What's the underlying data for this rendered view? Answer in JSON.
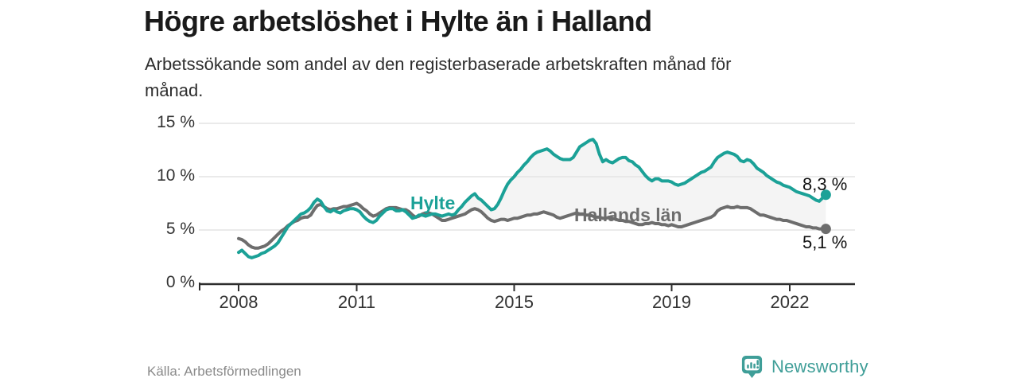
{
  "title": "Högre arbetslöshet i Hylte än i Halland",
  "subtitle": "Arbetssökande som andel av den registerbaserade arbetskraften månad för\nmånad.",
  "source": "Källa: Arbetsförmedlingen",
  "branding": {
    "name": "Newsworthy",
    "logo_icon": "newsworthy-chart-bubble-icon",
    "color": "#3f9e98"
  },
  "colors": {
    "hylte_line": "#1ba197",
    "halland_line": "#6d6d6d",
    "band_fill": "#f4f4f4",
    "gridline": "#e3e3e3",
    "axis": "#2d2d2d",
    "end_label": "#111111",
    "background": "#ffffff"
  },
  "chart_data": {
    "type": "line",
    "title": "Högre arbetslöshet i Hylte än i Halland",
    "subtitle": "Arbetssökande som andel av den registerbaserade arbetskraften månad för månad.",
    "unit": "%",
    "x_start_year": 2008,
    "x_interval": "monthly",
    "x_end": "2022-12",
    "ylim": [
      0,
      15
    ],
    "grid": "horizontal",
    "legend": "inline-labels",
    "yticks": [
      {
        "value": 0,
        "label": "0 %"
      },
      {
        "value": 5,
        "label": "5 %"
      },
      {
        "value": 10,
        "label": "10 %"
      },
      {
        "value": 15,
        "label": "15 %"
      }
    ],
    "xticks": [
      {
        "year": 2008,
        "label": "2008"
      },
      {
        "year": 2011,
        "label": "2011"
      },
      {
        "year": 2015,
        "label": "2015"
      },
      {
        "year": 2019,
        "label": "2019"
      },
      {
        "year": 2022,
        "label": "2022"
      }
    ],
    "series": [
      {
        "name": "Hylte",
        "color": "#1ba197",
        "end_value": 8.3,
        "end_label": "8,3 %",
        "values": [
          2.9,
          3.1,
          2.8,
          2.5,
          2.4,
          2.5,
          2.6,
          2.8,
          2.9,
          3.1,
          3.3,
          3.5,
          3.8,
          4.3,
          4.8,
          5.3,
          5.6,
          5.9,
          6.2,
          6.5,
          6.6,
          6.8,
          7.1,
          7.6,
          7.9,
          7.7,
          7.2,
          6.8,
          6.7,
          6.9,
          6.7,
          6.6,
          6.8,
          6.9,
          7.0,
          7.0,
          6.9,
          6.7,
          6.3,
          6.0,
          5.8,
          5.7,
          5.9,
          6.3,
          6.6,
          6.9,
          7.0,
          7.0,
          6.8,
          6.8,
          6.9,
          6.7,
          6.4,
          6.1,
          6.2,
          6.4,
          6.4,
          6.3,
          6.4,
          6.5,
          6.5,
          6.4,
          6.3,
          6.4,
          6.5,
          6.4,
          6.5,
          6.9,
          7.2,
          7.6,
          7.9,
          8.2,
          8.4,
          8.0,
          7.8,
          7.5,
          7.2,
          6.9,
          7.0,
          7.4,
          8.0,
          8.7,
          9.3,
          9.7,
          10.0,
          10.4,
          10.7,
          11.1,
          11.4,
          11.8,
          12.1,
          12.3,
          12.4,
          12.5,
          12.6,
          12.4,
          12.1,
          11.9,
          11.7,
          11.6,
          11.6,
          11.6,
          11.8,
          12.3,
          12.8,
          13.0,
          13.2,
          13.4,
          13.5,
          13.1,
          12.1,
          11.4,
          11.6,
          11.4,
          11.3,
          11.5,
          11.7,
          11.8,
          11.8,
          11.5,
          11.4,
          11.1,
          10.9,
          10.5,
          10.1,
          9.8,
          9.6,
          9.8,
          9.8,
          9.6,
          9.6,
          9.6,
          9.5,
          9.3,
          9.2,
          9.3,
          9.4,
          9.6,
          9.8,
          10.0,
          10.2,
          10.4,
          10.5,
          10.7,
          10.9,
          11.4,
          11.8,
          12.0,
          12.2,
          12.3,
          12.2,
          12.1,
          11.9,
          11.5,
          11.4,
          11.6,
          11.5,
          11.2,
          10.8,
          10.6,
          10.4,
          10.1,
          9.9,
          9.7,
          9.5,
          9.4,
          9.2,
          9.1,
          9.0,
          8.8,
          8.6,
          8.5,
          8.4,
          8.3,
          8.2,
          8.0,
          7.8,
          7.7,
          8.0,
          8.3
        ]
      },
      {
        "name": "Hallands län",
        "color": "#6d6d6d",
        "end_value": 5.1,
        "end_label": "5,1 %",
        "values": [
          4.2,
          4.1,
          3.9,
          3.6,
          3.4,
          3.3,
          3.3,
          3.4,
          3.5,
          3.7,
          4.0,
          4.3,
          4.6,
          4.9,
          5.1,
          5.4,
          5.6,
          5.8,
          5.9,
          6.1,
          6.2,
          6.2,
          6.4,
          6.9,
          7.3,
          7.4,
          7.2,
          7.0,
          6.9,
          7.0,
          7.0,
          7.1,
          7.2,
          7.2,
          7.3,
          7.4,
          7.5,
          7.3,
          7.0,
          6.8,
          6.5,
          6.3,
          6.4,
          6.6,
          6.8,
          7.0,
          7.1,
          7.1,
          7.1,
          7.0,
          6.9,
          6.9,
          6.7,
          6.4,
          6.2,
          6.3,
          6.5,
          6.6,
          6.6,
          6.5,
          6.3,
          6.1,
          5.9,
          5.9,
          6.0,
          6.1,
          6.2,
          6.3,
          6.4,
          6.5,
          6.7,
          6.9,
          7.0,
          6.9,
          6.7,
          6.4,
          6.1,
          5.9,
          5.8,
          5.9,
          6.0,
          6.0,
          5.9,
          6.0,
          6.1,
          6.1,
          6.2,
          6.3,
          6.4,
          6.4,
          6.5,
          6.5,
          6.6,
          6.7,
          6.6,
          6.5,
          6.4,
          6.2,
          6.1,
          6.2,
          6.3,
          6.4,
          6.5,
          6.6,
          6.5,
          6.5,
          6.4,
          6.4,
          6.3,
          6.2,
          6.2,
          6.1,
          6.1,
          6.2,
          6.1,
          6.0,
          5.9,
          5.9,
          5.8,
          5.8,
          5.7,
          5.6,
          5.5,
          5.5,
          5.6,
          5.6,
          5.7,
          5.6,
          5.6,
          5.5,
          5.5,
          5.4,
          5.5,
          5.4,
          5.3,
          5.3,
          5.4,
          5.5,
          5.6,
          5.7,
          5.8,
          5.9,
          6.0,
          6.1,
          6.2,
          6.4,
          6.8,
          7.0,
          7.1,
          7.2,
          7.1,
          7.1,
          7.2,
          7.1,
          7.1,
          7.1,
          7.0,
          6.8,
          6.6,
          6.4,
          6.4,
          6.3,
          6.2,
          6.1,
          6.0,
          6.0,
          5.9,
          5.9,
          5.8,
          5.7,
          5.6,
          5.5,
          5.4,
          5.3,
          5.3,
          5.2,
          5.2,
          5.1,
          5.1,
          5.1
        ]
      }
    ]
  }
}
